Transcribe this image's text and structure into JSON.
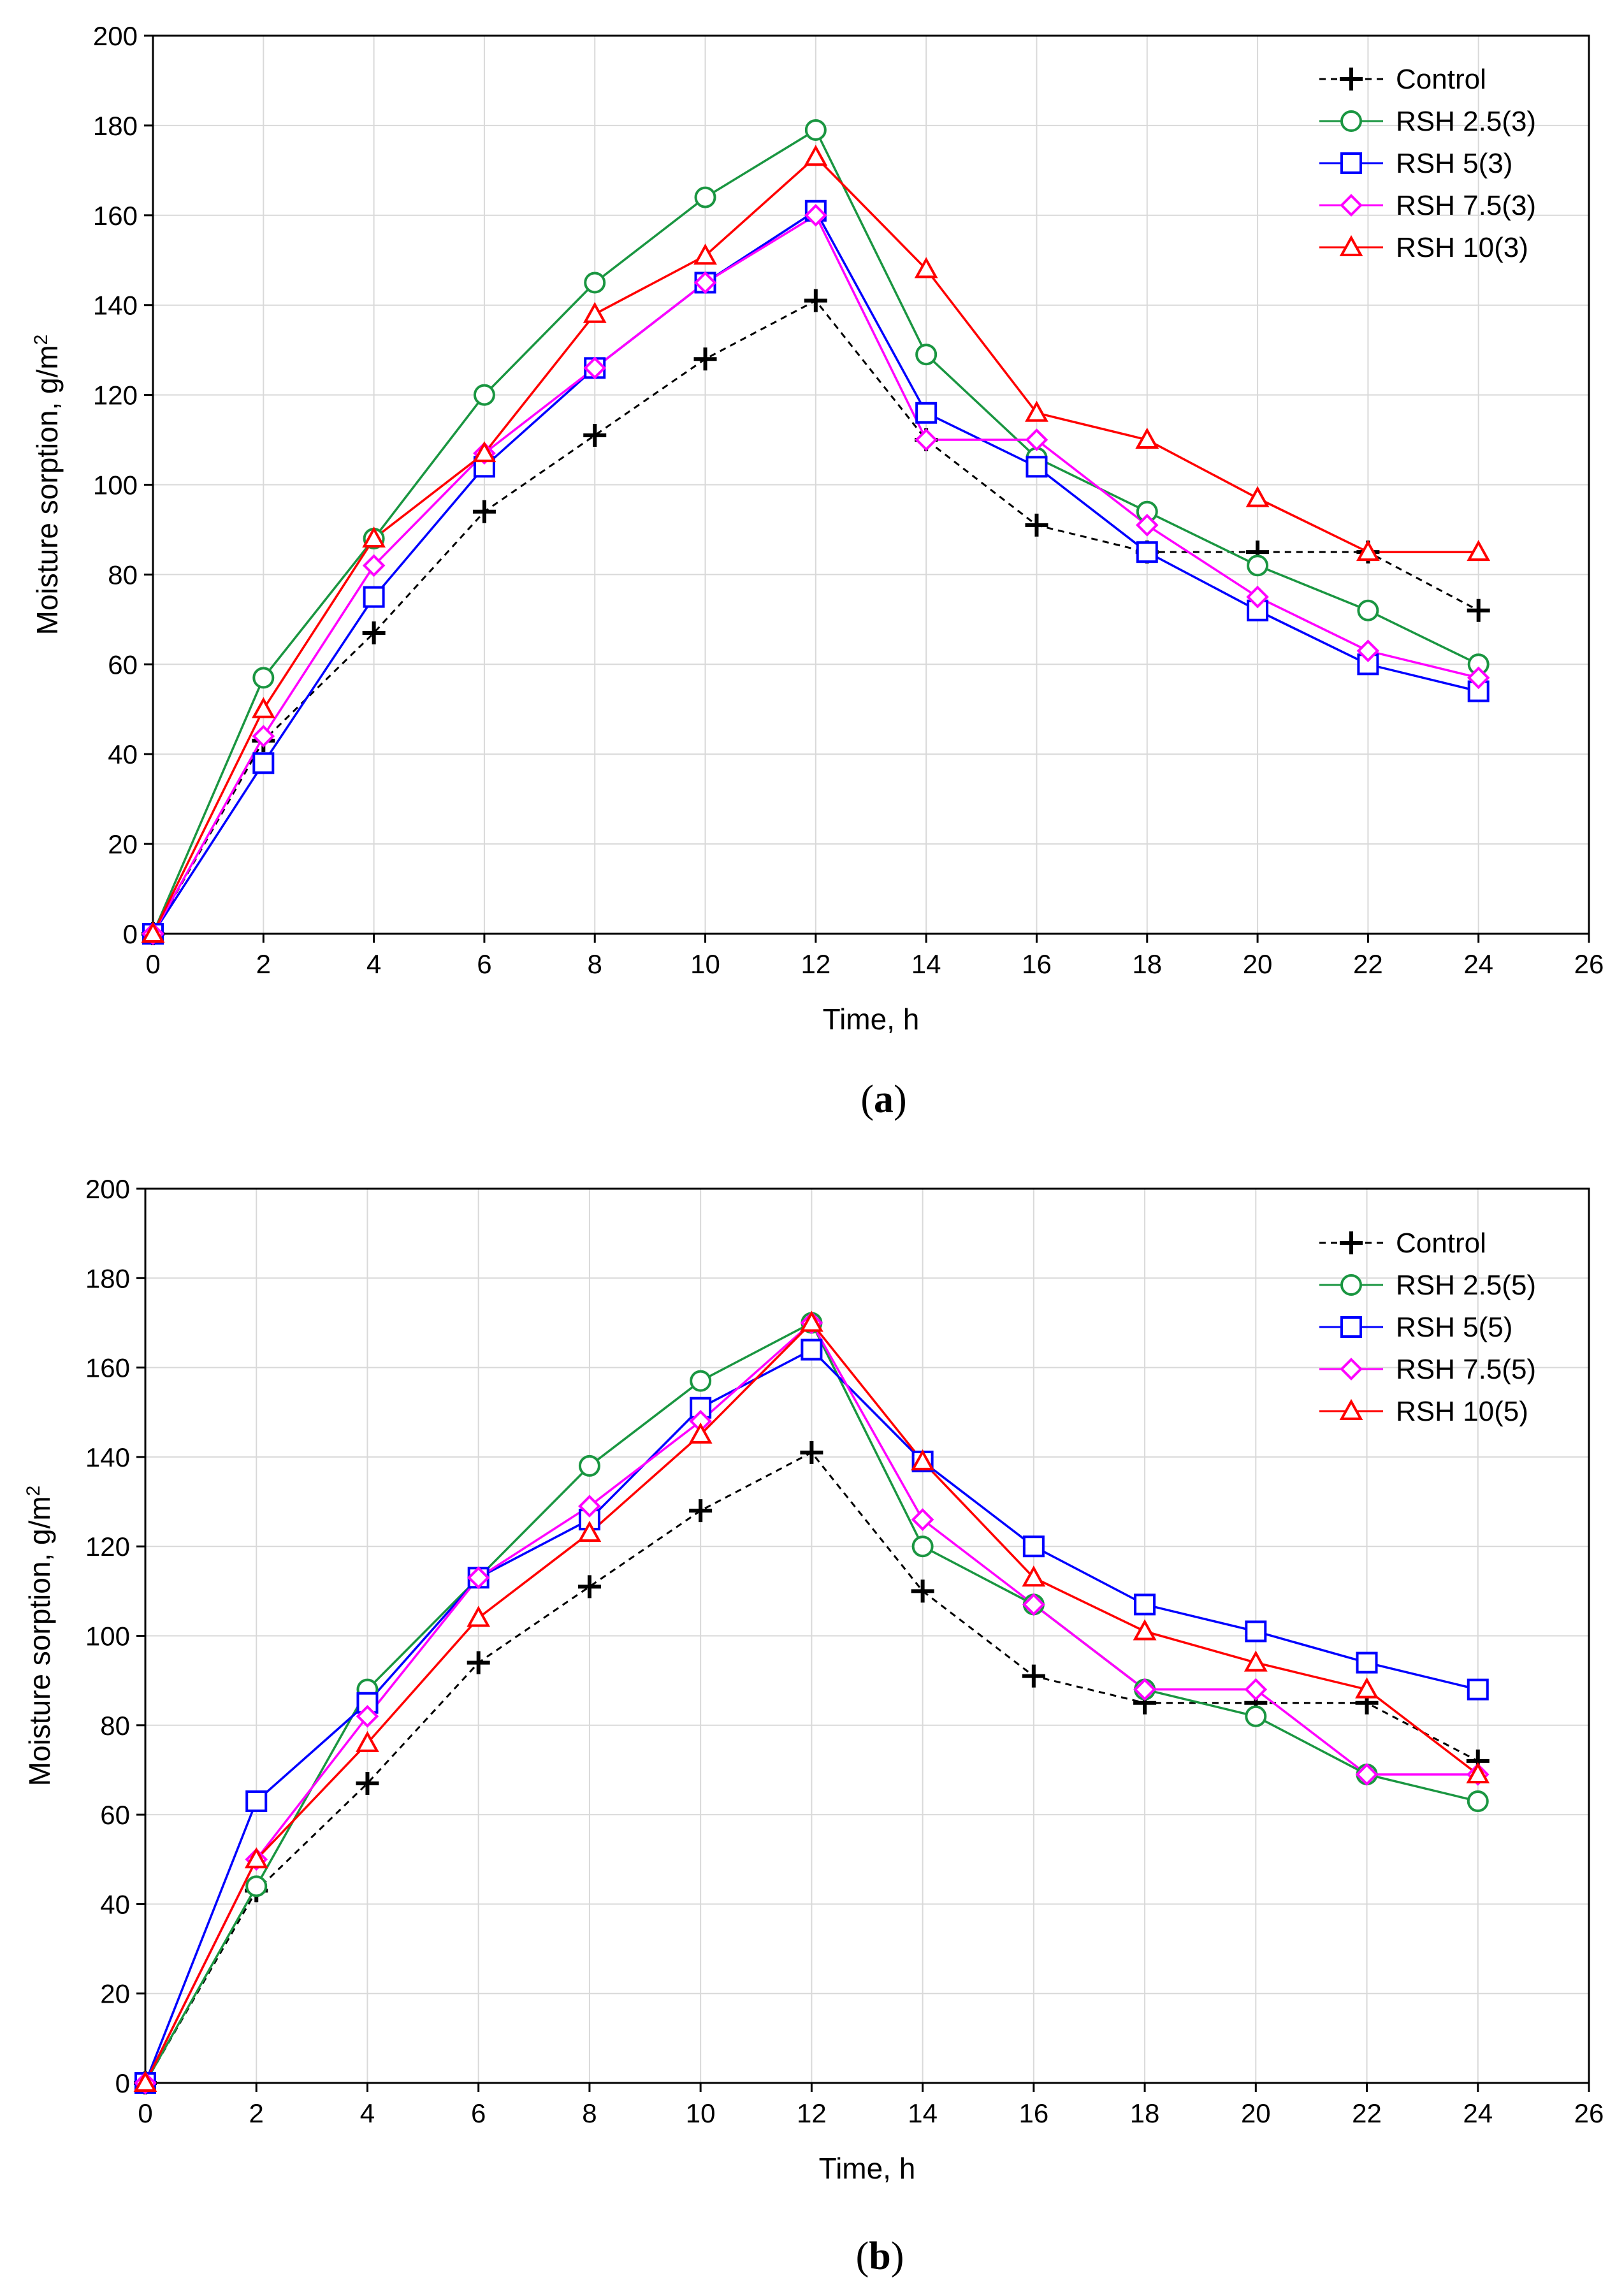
{
  "chart_data": [
    {
      "type": "line",
      "panel_label": "a",
      "xlabel": "Time, h",
      "ylabel": "Moisture sorption, g/m",
      "ylabel_sup": "2",
      "xlim": [
        0,
        26
      ],
      "ylim": [
        0,
        200
      ],
      "xticks": [
        0,
        2,
        4,
        6,
        8,
        10,
        12,
        14,
        16,
        18,
        20,
        22,
        24,
        26
      ],
      "yticks": [
        0,
        20,
        40,
        60,
        80,
        100,
        120,
        140,
        160,
        180,
        200
      ],
      "grid": true,
      "legend_position": "top-right",
      "x": [
        0,
        2,
        4,
        6,
        8,
        10,
        12,
        14,
        16,
        18,
        20,
        22,
        24
      ],
      "series": [
        {
          "name": "Control",
          "color": "#000000",
          "marker": "plus",
          "dashed": true,
          "values": [
            0,
            43,
            67,
            94,
            111,
            128,
            141,
            110,
            91,
            85,
            85,
            85,
            72
          ]
        },
        {
          "name": "RSH 2.5(3)",
          "color": "#1a9641",
          "marker": "circle",
          "dashed": false,
          "values": [
            0,
            57,
            88,
            120,
            145,
            164,
            179,
            129,
            106,
            94,
            82,
            72,
            60
          ]
        },
        {
          "name": "RSH 5(3)",
          "color": "#0000ff",
          "marker": "square",
          "dashed": false,
          "values": [
            0,
            38,
            75,
            104,
            126,
            145,
            161,
            116,
            104,
            85,
            72,
            60,
            54
          ]
        },
        {
          "name": "RSH 7.5(3)",
          "color": "#ff00ff",
          "marker": "diamond",
          "dashed": false,
          "values": [
            0,
            44,
            82,
            107,
            126,
            145,
            160,
            110,
            110,
            91,
            75,
            63,
            57
          ]
        },
        {
          "name": "RSH 10(3)",
          "color": "#ff0000",
          "marker": "triangle",
          "dashed": false,
          "values": [
            0,
            50,
            88,
            107,
            138,
            151,
            173,
            148,
            116,
            110,
            97,
            85,
            85
          ]
        }
      ]
    },
    {
      "type": "line",
      "panel_label": "b",
      "xlabel": "Time, h",
      "ylabel": "Moisture sorption, g/m",
      "ylabel_sup": "2",
      "xlim": [
        0,
        26
      ],
      "ylim": [
        0,
        200
      ],
      "xticks": [
        0,
        2,
        4,
        6,
        8,
        10,
        12,
        14,
        16,
        18,
        20,
        22,
        24,
        26
      ],
      "yticks": [
        0,
        20,
        40,
        60,
        80,
        100,
        120,
        140,
        160,
        180,
        200
      ],
      "grid": true,
      "legend_position": "top-right",
      "x": [
        0,
        2,
        4,
        6,
        8,
        10,
        12,
        14,
        16,
        18,
        20,
        22,
        24
      ],
      "series": [
        {
          "name": "Control",
          "color": "#000000",
          "marker": "plus",
          "dashed": true,
          "values": [
            0,
            43,
            67,
            94,
            111,
            128,
            141,
            110,
            91,
            85,
            85,
            85,
            72
          ]
        },
        {
          "name": "RSH 2.5(5)",
          "color": "#1a9641",
          "marker": "circle",
          "dashed": false,
          "values": [
            0,
            44,
            88,
            113,
            138,
            157,
            170,
            120,
            107,
            88,
            82,
            69,
            63
          ]
        },
        {
          "name": "RSH 5(5)",
          "color": "#0000ff",
          "marker": "square",
          "dashed": false,
          "values": [
            0,
            63,
            85,
            113,
            126,
            151,
            164,
            139,
            120,
            107,
            101,
            94,
            88
          ]
        },
        {
          "name": "RSH 7.5(5)",
          "color": "#ff00ff",
          "marker": "diamond",
          "dashed": false,
          "values": [
            0,
            50,
            82,
            113,
            129,
            148,
            170,
            126,
            107,
            88,
            88,
            69,
            69
          ]
        },
        {
          "name": "RSH 10(5)",
          "color": "#ff0000",
          "marker": "triangle",
          "dashed": false,
          "values": [
            0,
            50,
            76,
            104,
            123,
            145,
            170,
            139,
            113,
            101,
            94,
            88,
            69
          ]
        }
      ]
    }
  ]
}
